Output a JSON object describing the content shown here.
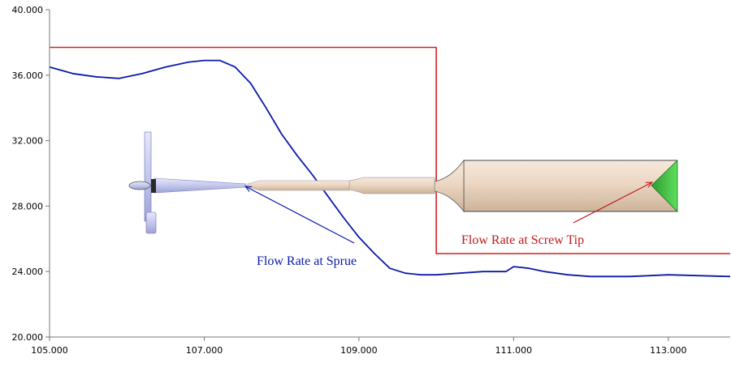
{
  "chart_data": {
    "type": "line",
    "title": "",
    "xlabel": "",
    "ylabel": "",
    "xlim": [
      105.0,
      113.8
    ],
    "ylim": [
      20.0,
      40.0
    ],
    "x_ticks": [
      "105.000",
      "107.000",
      "109.000",
      "111.000",
      "113.000"
    ],
    "y_ticks": [
      "20.000",
      "24.000",
      "28.000",
      "32.000",
      "36.000",
      "40.000"
    ],
    "grid": false,
    "series": [
      {
        "color": "#0a1aa8",
        "x": [
          105.0,
          105.3,
          105.6,
          105.9,
          106.2,
          106.5,
          106.8,
          107.0,
          107.2,
          107.4,
          107.6,
          107.8,
          108.0,
          108.2,
          108.4,
          108.6,
          108.8,
          109.0,
          109.2,
          109.4,
          109.6,
          109.8,
          110.0,
          110.3,
          110.6,
          110.9,
          111.0,
          111.2,
          111.4,
          111.7,
          112.0,
          112.5,
          113.0,
          113.8
        ],
        "values": [
          36.5,
          36.1,
          35.9,
          35.8,
          36.1,
          36.5,
          36.8,
          36.9,
          36.9,
          36.5,
          35.5,
          34.0,
          32.4,
          31.1,
          29.9,
          28.6,
          27.3,
          26.1,
          25.1,
          24.2,
          23.9,
          23.8,
          23.8,
          23.9,
          24.0,
          24.0,
          24.3,
          24.2,
          24.0,
          23.8,
          23.7,
          23.7,
          23.8,
          23.7
        ]
      },
      {
        "color": "#d42020",
        "x": [
          105.0,
          110.0,
          110.0,
          113.8
        ],
        "values": [
          37.7,
          37.7,
          25.1,
          25.1
        ]
      }
    ],
    "annotations": [
      {
        "text": "Flow Rate at Sprue",
        "color": "#0a1aa8"
      },
      {
        "text": "Flow Rate at Screw Tip",
        "color": "#c01818"
      }
    ]
  }
}
